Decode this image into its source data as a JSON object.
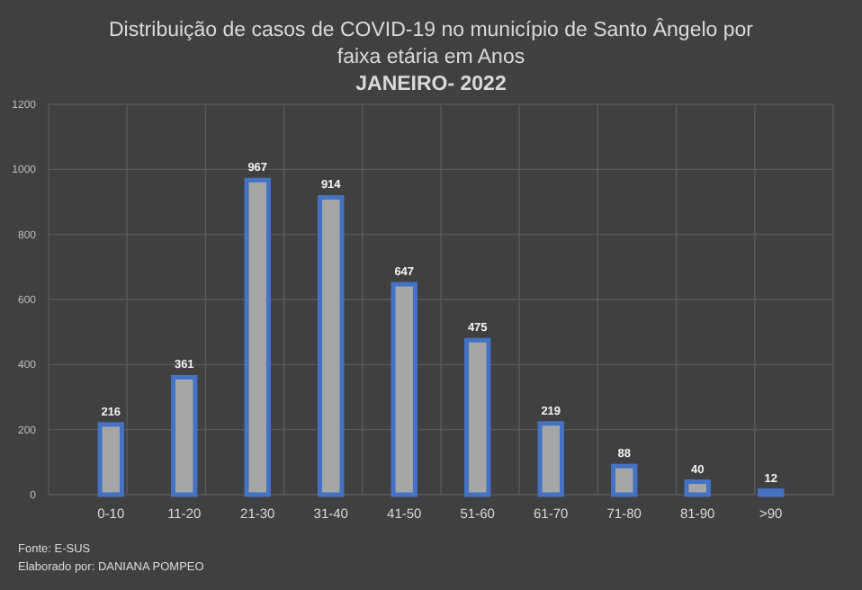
{
  "chart_data": {
    "type": "bar",
    "title": "Distribuição de casos de COVID-19 no município de Santo Ângelo por faixa etária em Anos",
    "subtitle": "JANEIRO- 2022",
    "categories": [
      "0-10",
      "11-20",
      "21-30",
      "31-40",
      "41-50",
      "51-60",
      "61-70",
      "71-80",
      "81-90",
      ">90"
    ],
    "values": [
      216,
      361,
      967,
      914,
      647,
      475,
      219,
      88,
      40,
      12
    ],
    "color": "#a6a6a6",
    "data_labels": true,
    "ylim": [
      0,
      1200
    ],
    "yticks": [
      0,
      200,
      400,
      600,
      800,
      1000,
      1200
    ],
    "grid": true,
    "annotations": [
      "Fonte: E-SUS",
      "Elaborado por: DANIANA POMPEO"
    ]
  }
}
